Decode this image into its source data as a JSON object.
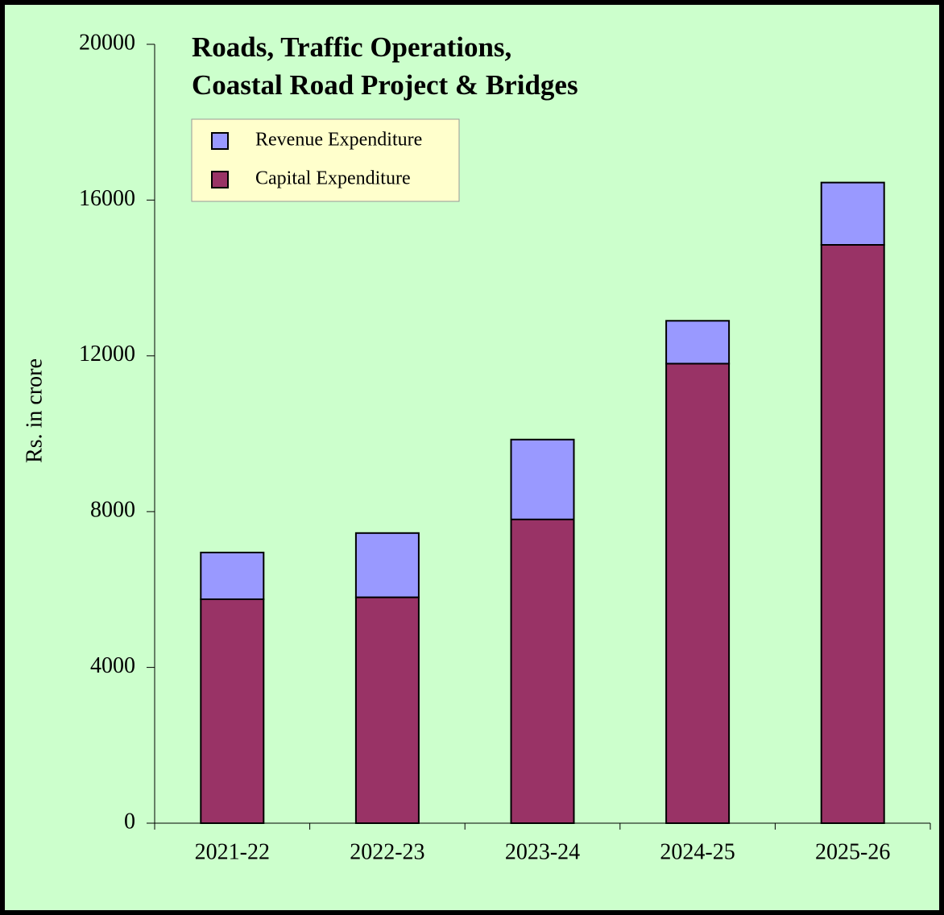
{
  "chart_data": {
    "type": "stacked_bar",
    "title": [
      "Roads, Traffic Operations,",
      "Coastal Road Project & Bridges"
    ],
    "y_label": "Rs. in crore",
    "categories": [
      "2021-22",
      "2022-23",
      "2023-24",
      "2024-25",
      "2025-26"
    ],
    "series": [
      {
        "name": "Capital Expenditure",
        "color": "#993366",
        "values": [
          5750,
          5800,
          7800,
          11800,
          14850
        ]
      },
      {
        "name": "Revenue Expenditure",
        "color": "#9999ff",
        "values": [
          1200,
          1650,
          2050,
          1100,
          1600
        ]
      }
    ],
    "ylim": [
      0,
      20000
    ],
    "yticks": [
      0,
      4000,
      8000,
      12000,
      16000,
      20000
    ],
    "grid": false
  }
}
